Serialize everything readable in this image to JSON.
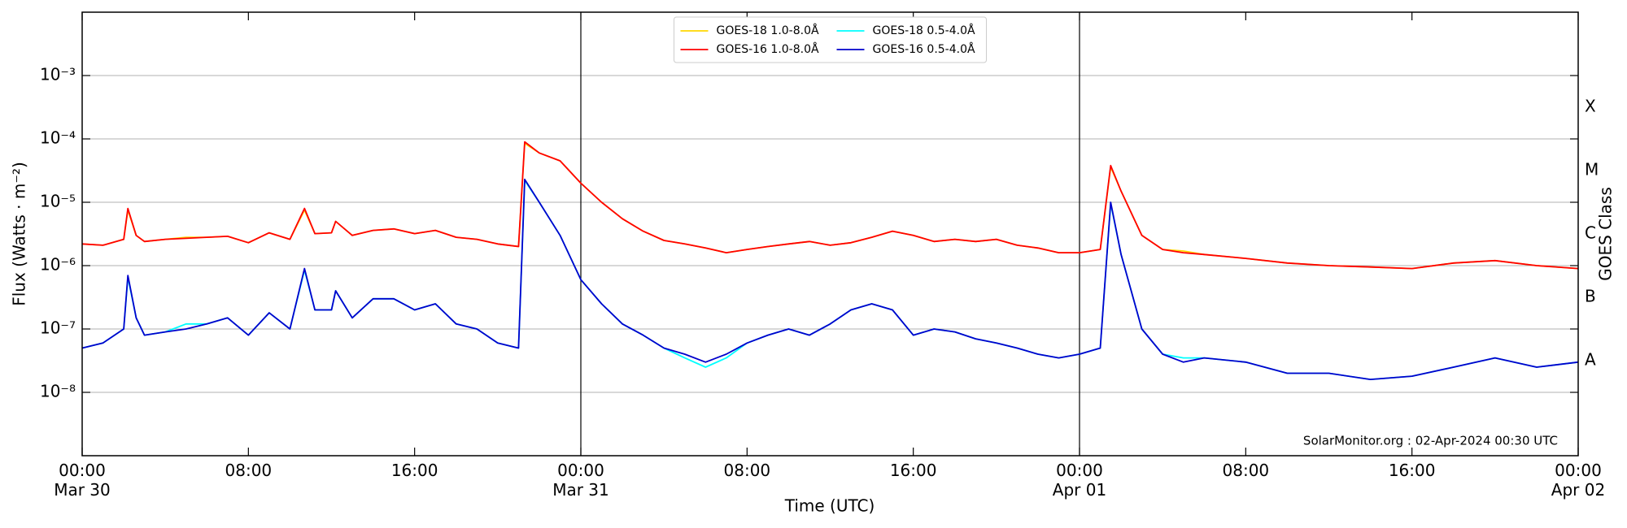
{
  "chart_data": {
    "type": "line",
    "ylabel": "Flux (Watts · m⁻²)",
    "xlabel": "Time (UTC)",
    "y2label": "GOES Class",
    "annotation": "SolarMonitor.org : 02-Apr-2024 00:30 UTC",
    "log_y": true,
    "grid": true,
    "legend": "upper center",
    "xlim": [
      0,
      72
    ],
    "xticks": [
      {
        "value": 0,
        "label": "00:00\nMar 30"
      },
      {
        "value": 8,
        "label": "08:00"
      },
      {
        "value": 16,
        "label": "16:00"
      },
      {
        "value": 24,
        "label": "00:00\nMar 31"
      },
      {
        "value": 32,
        "label": "08:00"
      },
      {
        "value": 40,
        "label": "16:00"
      },
      {
        "value": 48,
        "label": "00:00\nApr 01"
      },
      {
        "value": 56,
        "label": "08:00"
      },
      {
        "value": 64,
        "label": "16:00"
      },
      {
        "value": 72,
        "label": "00:00\nApr 02"
      }
    ],
    "ylim": [
      1e-09,
      0.01
    ],
    "yticks": [
      {
        "value": 1e-08,
        "label": "10⁻⁸"
      },
      {
        "value": 1e-07,
        "label": "10⁻⁷"
      },
      {
        "value": 1e-06,
        "label": "10⁻⁶"
      },
      {
        "value": 1e-05,
        "label": "10⁻⁵"
      },
      {
        "value": 0.0001,
        "label": "10⁻⁴"
      },
      {
        "value": 0.001,
        "label": "10⁻³"
      }
    ],
    "y2lim": [
      1e-09,
      0.01
    ],
    "y2ticks": [
      {
        "value": 3.16e-08,
        "label": "A"
      },
      {
        "value": 3.16e-07,
        "label": "B"
      },
      {
        "value": 3.16e-06,
        "label": "C"
      },
      {
        "value": 3.16e-05,
        "label": "M"
      },
      {
        "value": 0.000316,
        "label": "X"
      }
    ],
    "x": [
      0,
      1,
      2,
      2.2,
      2.6,
      3,
      4,
      5,
      6,
      7,
      8,
      9,
      10,
      10.7,
      11.2,
      12,
      12.2,
      13,
      14,
      15,
      16,
      17,
      18,
      19,
      20,
      21,
      21.3,
      22,
      23,
      24,
      25,
      26,
      27,
      28,
      29,
      30,
      31,
      32,
      33,
      34,
      35,
      36,
      37,
      38,
      39,
      40,
      41,
      42,
      43,
      44,
      45,
      46,
      47,
      48,
      49,
      49.5,
      50,
      51,
      52,
      53,
      54,
      56,
      58,
      60,
      62,
      64,
      66,
      68,
      70,
      72
    ],
    "series": [
      {
        "name": "GOES-18 1.0-8.0Å",
        "color": "#ffd700",
        "values": [
          2.2e-06,
          2.1e-06,
          2.6e-06,
          7.5e-06,
          3e-06,
          2.4e-06,
          2.6e-06,
          2.8e-06,
          2.8e-06,
          2.9e-06,
          2.3e-06,
          3.3e-06,
          2.6e-06,
          7.5e-06,
          3.2e-06,
          3.3e-06,
          5e-06,
          3e-06,
          3.6e-06,
          3.8e-06,
          3.2e-06,
          3.6e-06,
          2.8e-06,
          2.6e-06,
          2.2e-06,
          2e-06,
          8.5e-05,
          6e-05,
          4.5e-05,
          2e-05,
          1e-05,
          5.5e-06,
          3.5e-06,
          2.5e-06,
          2.2e-06,
          1.9e-06,
          1.6e-06,
          1.8e-06,
          2e-06,
          2.2e-06,
          2.4e-06,
          2.1e-06,
          2.3e-06,
          2.8e-06,
          3.5e-06,
          3e-06,
          2.4e-06,
          2.6e-06,
          2.4e-06,
          2.6e-06,
          2.1e-06,
          1.9e-06,
          1.6e-06,
          1.6e-06,
          1.8e-06,
          3.6e-05,
          1.5e-05,
          3e-06,
          1.8e-06,
          1.7e-06,
          1.5e-06,
          1.3e-06,
          1.1e-06,
          1e-06,
          9.5e-07,
          9e-07,
          1.1e-06,
          1.2e-06,
          1e-06,
          9e-07
        ]
      },
      {
        "name": "GOES-16 1.0-8.0Å",
        "color": "#ff0000",
        "values": [
          2.2e-06,
          2.1e-06,
          2.6e-06,
          8e-06,
          3e-06,
          2.4e-06,
          2.6e-06,
          2.7e-06,
          2.8e-06,
          2.9e-06,
          2.3e-06,
          3.3e-06,
          2.6e-06,
          8e-06,
          3.2e-06,
          3.3e-06,
          5e-06,
          3e-06,
          3.6e-06,
          3.8e-06,
          3.2e-06,
          3.6e-06,
          2.8e-06,
          2.6e-06,
          2.2e-06,
          2e-06,
          9e-05,
          6e-05,
          4.5e-05,
          2e-05,
          1e-05,
          5.5e-06,
          3.5e-06,
          2.5e-06,
          2.2e-06,
          1.9e-06,
          1.6e-06,
          1.8e-06,
          2e-06,
          2.2e-06,
          2.4e-06,
          2.1e-06,
          2.3e-06,
          2.8e-06,
          3.5e-06,
          3e-06,
          2.4e-06,
          2.6e-06,
          2.4e-06,
          2.6e-06,
          2.1e-06,
          1.9e-06,
          1.6e-06,
          1.6e-06,
          1.8e-06,
          3.8e-05,
          1.5e-05,
          3e-06,
          1.8e-06,
          1.6e-06,
          1.5e-06,
          1.3e-06,
          1.1e-06,
          1e-06,
          9.5e-07,
          9e-07,
          1.1e-06,
          1.2e-06,
          1e-06,
          9e-07
        ]
      },
      {
        "name": "GOES-18 0.5-4.0Å",
        "color": "#00ffff",
        "values": [
          5e-08,
          6e-08,
          1e-07,
          6.5e-07,
          1.5e-07,
          8e-08,
          9e-08,
          1.2e-07,
          1.2e-07,
          1.5e-07,
          8e-08,
          1.8e-07,
          1e-07,
          8.5e-07,
          2e-07,
          2e-07,
          4e-07,
          1.5e-07,
          3e-07,
          3e-07,
          2e-07,
          2.5e-07,
          1.2e-07,
          1e-07,
          6e-08,
          5e-08,
          2.2e-05,
          1e-05,
          3e-06,
          6e-07,
          2.5e-07,
          1.2e-07,
          8e-08,
          5e-08,
          3.5e-08,
          2.5e-08,
          3.5e-08,
          6e-08,
          8e-08,
          1e-07,
          8e-08,
          1.2e-07,
          2e-07,
          2.5e-07,
          2e-07,
          8e-08,
          1e-07,
          9e-08,
          7e-08,
          6e-08,
          5e-08,
          4e-08,
          3.5e-08,
          4e-08,
          5e-08,
          9.5e-06,
          1.5e-06,
          1e-07,
          4e-08,
          3.5e-08,
          3.5e-08,
          3e-08,
          2e-08,
          2e-08,
          1.6e-08,
          1.8e-08,
          2.5e-08,
          3.5e-08,
          2.5e-08,
          3e-08
        ]
      },
      {
        "name": "GOES-16 0.5-4.0Å",
        "color": "#0000cc",
        "values": [
          5e-08,
          6e-08,
          1e-07,
          7e-07,
          1.5e-07,
          8e-08,
          9e-08,
          1e-07,
          1.2e-07,
          1.5e-07,
          8e-08,
          1.8e-07,
          1e-07,
          9e-07,
          2e-07,
          2e-07,
          4e-07,
          1.5e-07,
          3e-07,
          3e-07,
          2e-07,
          2.5e-07,
          1.2e-07,
          1e-07,
          6e-08,
          5e-08,
          2.3e-05,
          1e-05,
          3e-06,
          6e-07,
          2.5e-07,
          1.2e-07,
          8e-08,
          5e-08,
          4e-08,
          3e-08,
          4e-08,
          6e-08,
          8e-08,
          1e-07,
          8e-08,
          1.2e-07,
          2e-07,
          2.5e-07,
          2e-07,
          8e-08,
          1e-07,
          9e-08,
          7e-08,
          6e-08,
          5e-08,
          4e-08,
          3.5e-08,
          4e-08,
          5e-08,
          1e-05,
          1.5e-06,
          1e-07,
          4e-08,
          3e-08,
          3.5e-08,
          3e-08,
          2e-08,
          2e-08,
          1.6e-08,
          1.8e-08,
          2.5e-08,
          3.5e-08,
          2.5e-08,
          3e-08
        ]
      }
    ]
  }
}
